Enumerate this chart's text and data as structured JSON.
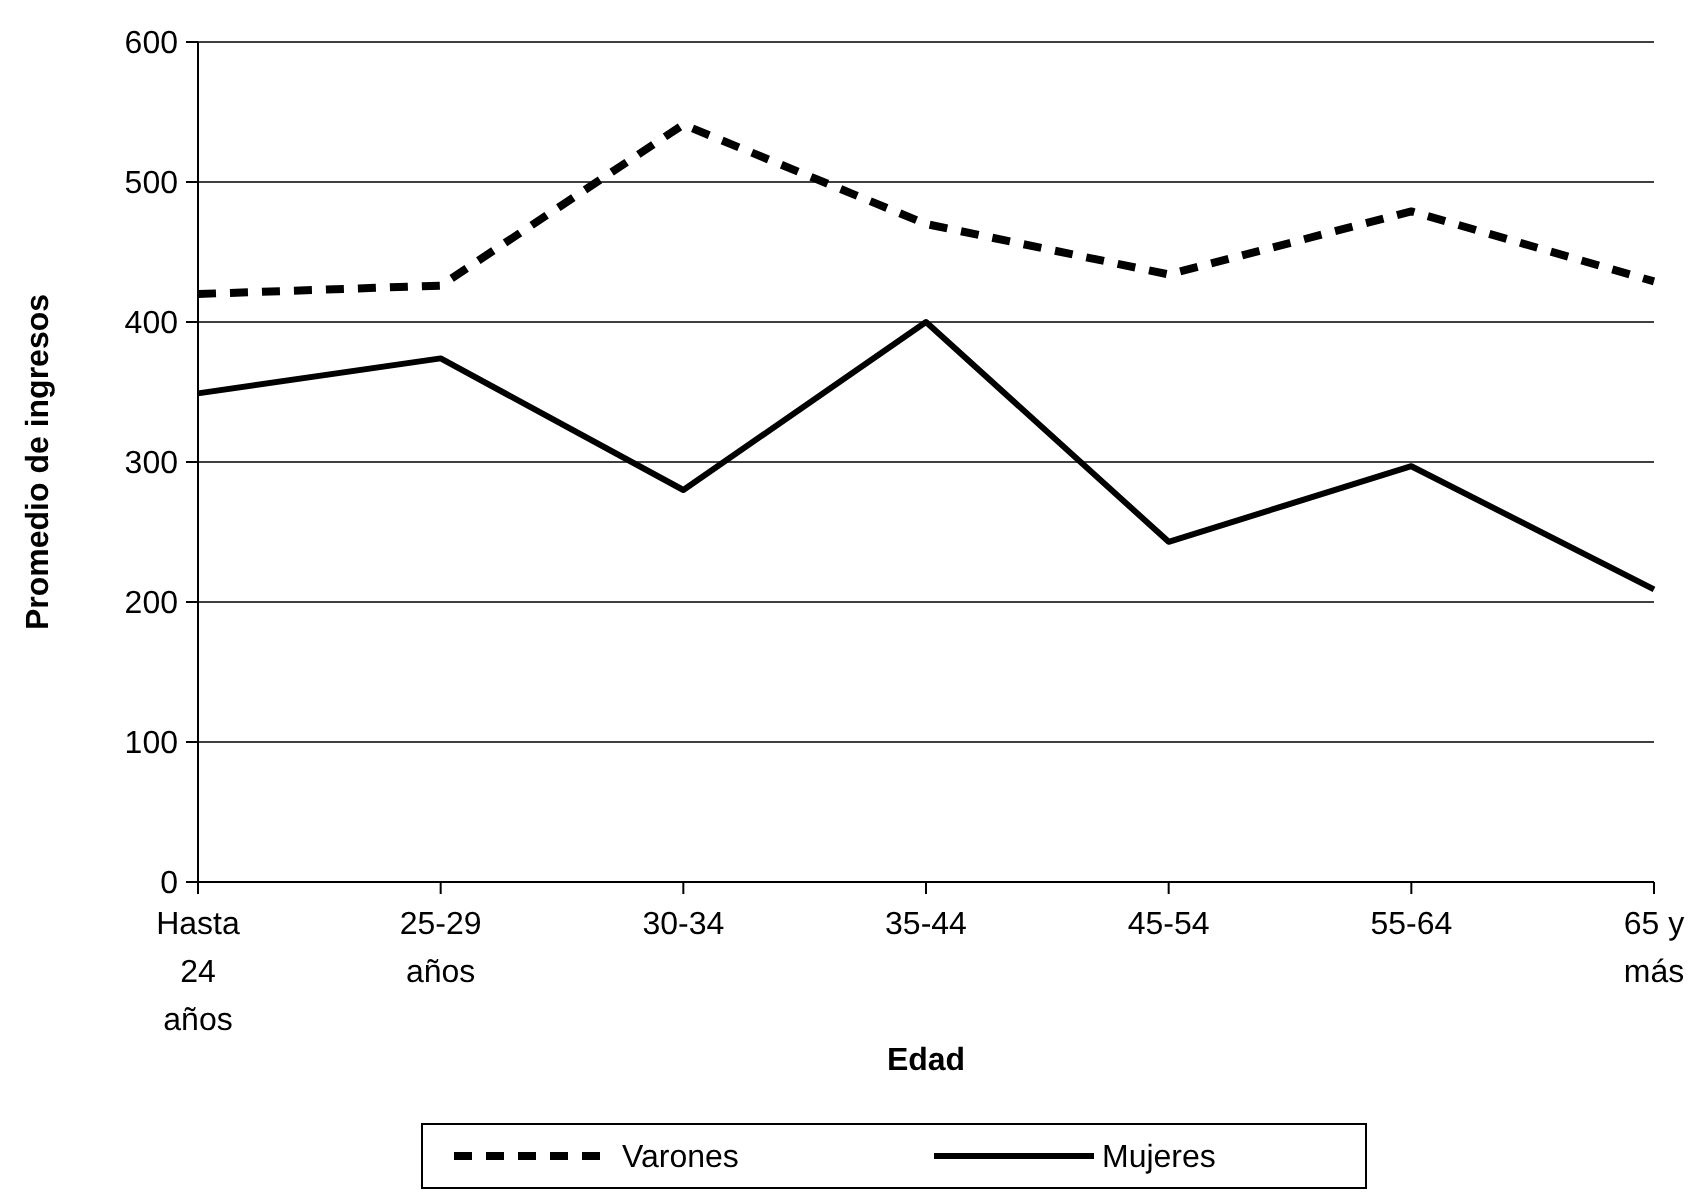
{
  "chart_data": {
    "type": "line",
    "xlabel": "Edad",
    "ylabel": "Promedio de ingresos",
    "categories": [
      "Hasta 24 años",
      "25-29 años",
      "30-34",
      "35-44",
      "45-54",
      "55-64",
      "65 y más"
    ],
    "series": [
      {
        "name": "Varones",
        "color": "#000000",
        "line_style": "dashed",
        "values": [
          420,
          426,
          541,
          470,
          434,
          479,
          429
        ]
      },
      {
        "name": "Mujeres",
        "color": "#000000",
        "line_style": "solid",
        "values": [
          349,
          374,
          280,
          400,
          243,
          297,
          209
        ]
      }
    ],
    "ylim": [
      0,
      600
    ],
    "yticks": [
      0,
      100,
      200,
      300,
      400,
      500,
      600
    ],
    "grid": "y",
    "legend": "bottom",
    "marker": "none"
  }
}
